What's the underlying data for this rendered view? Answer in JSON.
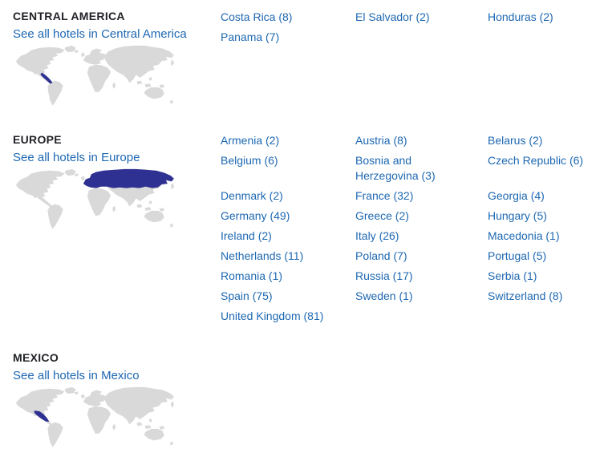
{
  "colors": {
    "link": "#1e68b2",
    "heading": "#212227",
    "map_land": "#d9d9d9",
    "map_highlight": "#2e3191",
    "background": "#ffffff"
  },
  "sections": [
    {
      "title": "CENTRAL AMERICA",
      "see_all_label": "See all hotels in Central America",
      "map_region": "central-america",
      "countries": [
        "Costa Rica (8)",
        "El Salvador (2)",
        "Honduras (2)",
        "Panama (7)"
      ]
    },
    {
      "title": "EUROPE",
      "see_all_label": "See all hotels in Europe",
      "map_region": "europe",
      "countries": [
        "Armenia (2)",
        "Austria (8)",
        "Belarus (2)",
        "Belgium (6)",
        "Bosnia and Herzegovina (3)",
        "Czech Republic (6)",
        "Denmark (2)",
        "France (32)",
        "Georgia (4)",
        "Germany (49)",
        "Greece (2)",
        "Hungary (5)",
        "Ireland (2)",
        "Italy (26)",
        "Macedonia (1)",
        "Netherlands (11)",
        "Poland (7)",
        "Portugal (5)",
        "Romania (1)",
        "Russia (17)",
        "Serbia (1)",
        "Spain (75)",
        "Sweden (1)",
        "Switzerland (8)",
        "United Kingdom (81)"
      ]
    },
    {
      "title": "MEXICO",
      "see_all_label": "See all hotels in Mexico",
      "map_region": "mexico",
      "countries": []
    }
  ]
}
